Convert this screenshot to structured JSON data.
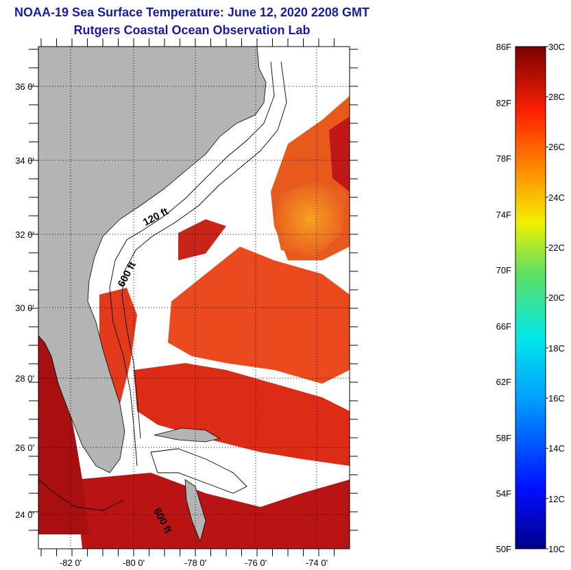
{
  "header": {
    "title": "NOAA-19 Sea Surface Temperature:  June 12, 2020 2208 GMT",
    "subtitle": "Rutgers Coastal Ocean Observation Lab"
  },
  "map": {
    "lat_labels": [
      "36 0'",
      "34 0'",
      "32 0'",
      "30 0'",
      "28 0'",
      "26 0'",
      "24 0'"
    ],
    "lon_labels": [
      "-82 0'",
      "-80 0'",
      "-78 0'",
      "-76 0'",
      "-74 0'"
    ],
    "contour_labels": [
      "120 ft",
      "600 ft",
      "600 ft"
    ],
    "colors": {
      "land": "#b4b4b4",
      "cloud": "#ffffff",
      "sst_warm": "#e83218",
      "sst_hot": "#b01010",
      "sst_orange": "#f07820"
    }
  },
  "colorbar": {
    "fahrenheit_labels": [
      "86F",
      "82F",
      "78F",
      "74F",
      "70F",
      "66F",
      "62F",
      "58F",
      "54F",
      "50F"
    ],
    "celsius_labels": [
      "30C",
      "28C",
      "26C",
      "24C",
      "22C",
      "20C",
      "18C",
      "16C",
      "14C",
      "12C",
      "10C"
    ]
  }
}
